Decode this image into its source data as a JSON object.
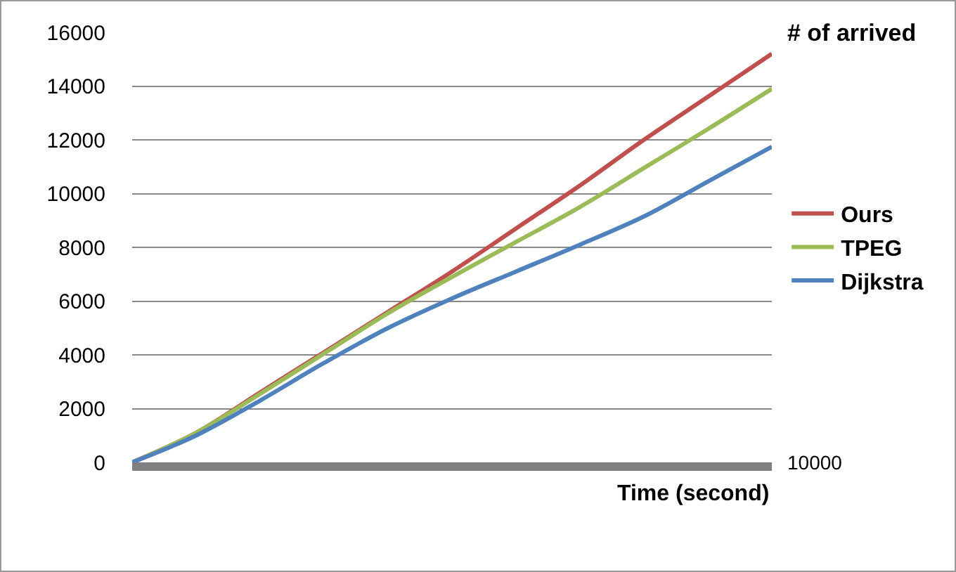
{
  "chart_data": {
    "type": "line",
    "xlabel": "Time (second)",
    "ylabel": "# of arrived",
    "categories": [
      null,
      null,
      null,
      null,
      null,
      null,
      null,
      null,
      null,
      null,
      null
    ],
    "series": [
      {
        "name": "Ours",
        "color": "#c0504d",
        "values": [
          0,
          1100,
          2600,
          4100,
          5600,
          7100,
          8700,
          10300,
          12000,
          13600,
          15200
        ]
      },
      {
        "name": "TPEG",
        "color": "#9bbb59",
        "values": [
          0,
          1100,
          2550,
          4050,
          5550,
          6900,
          8200,
          9500,
          10950,
          12400,
          13900
        ]
      },
      {
        "name": "Dijkstra",
        "color": "#4f81bd",
        "values": [
          0,
          1000,
          2300,
          3700,
          5000,
          6100,
          7100,
          8100,
          9150,
          10450,
          11740
        ]
      }
    ],
    "ylim": [
      0,
      16000
    ],
    "yticks": [
      0,
      2000,
      4000,
      6000,
      8000,
      10000,
      12000,
      14000,
      16000
    ],
    "grid": "y",
    "legend": "right",
    "tick_labels": "y",
    "marker": "none",
    "line_style": "solid",
    "annotations": [
      "10000"
    ]
  }
}
